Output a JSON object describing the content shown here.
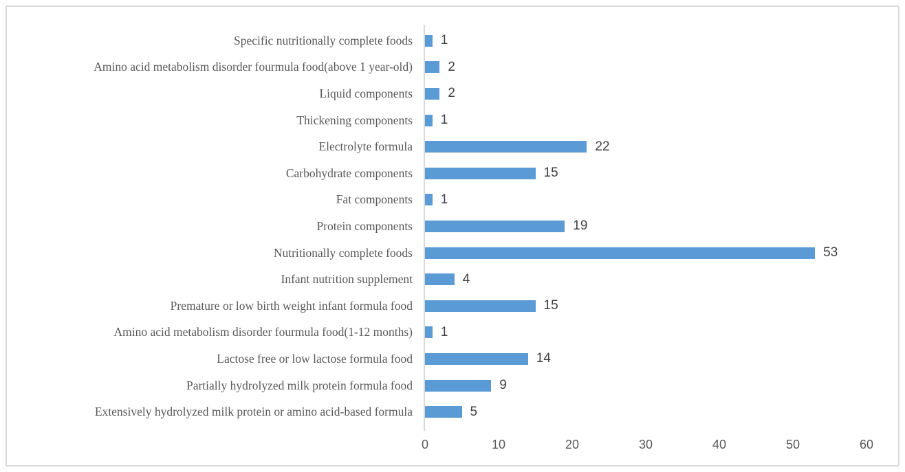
{
  "chart_data": {
    "type": "bar",
    "orientation": "horizontal",
    "title": "",
    "xlabel": "",
    "ylabel": "",
    "categories": [
      "Specific nutritionally complete foods",
      "Amino acid metabolism disorder fourmula food(above 1 year-old)",
      "Liquid components",
      "Thickening components",
      "Electrolyte formula",
      "Carbohydrate components",
      "Fat components",
      "Protein components",
      "Nutritionally complete foods",
      "Infant nutrition supplement",
      "Premature or low birth weight infant formula food",
      "Amino acid metabolism disorder fourmula food(1-12 months)",
      "Lactose free  or low lactose formula food",
      "Partially hydrolyzed milk protein formula food",
      "Extensively hydrolyzed milk protein  or amino acid-based formula"
    ],
    "values": [
      1,
      2,
      2,
      1,
      22,
      15,
      1,
      19,
      53,
      4,
      15,
      1,
      14,
      9,
      5
    ],
    "xlim": [
      0,
      60
    ],
    "x_ticks": [
      0,
      10,
      20,
      30,
      40,
      50,
      60
    ],
    "data_labels": true,
    "grid": false,
    "legend": "none",
    "bar_color": "#5b9bd5",
    "axis_line_color": "#d9d9d9",
    "label_color": "#595959",
    "value_label_color": "#404040"
  }
}
